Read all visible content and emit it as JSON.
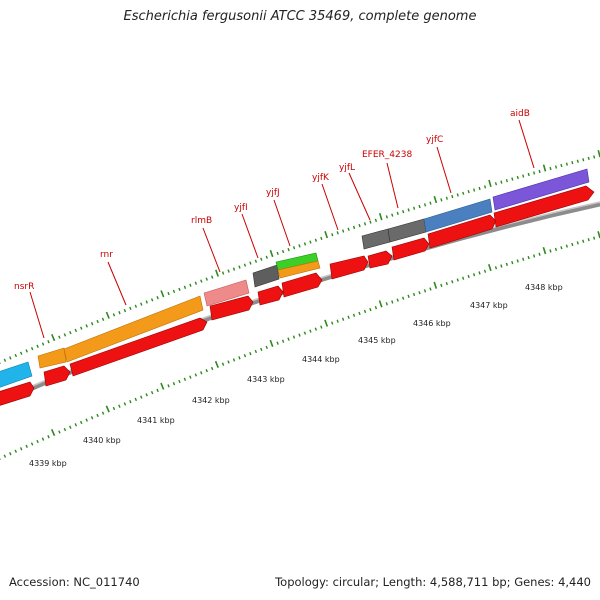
{
  "title": "Escherichia fergusonii ATCC 35469, complete genome",
  "footer": {
    "accession": "Accession: NC_011740",
    "stats": "Topology: circular; Length: 4,588,711 bp; Genes: 4,440"
  },
  "colors": {
    "background": "#ffffff",
    "backbone": "#9a9a9a",
    "cds": "#ee1111",
    "tick": "#2a8a1a",
    "label": "#cc0000"
  },
  "gene_labels": [
    "nsrR",
    "rnr",
    "rlmB",
    "yjfI",
    "yjfJ",
    "yjfK",
    "yjfL",
    "EFER_4238",
    "yjfC",
    "aidB"
  ],
  "kbp_labels": [
    "4339 kbp",
    "4340 kbp",
    "4341 kbp",
    "4342 kbp",
    "4343 kbp",
    "4344 kbp",
    "4345 kbp",
    "4346 kbp",
    "4347 kbp",
    "4348 kbp"
  ]
}
